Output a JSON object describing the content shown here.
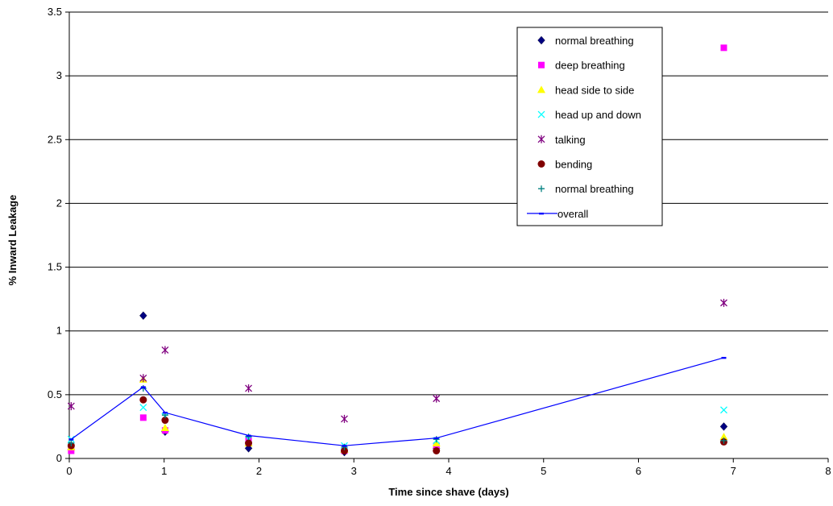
{
  "chart_data": {
    "type": "scatter",
    "title": "",
    "xlabel": "Time since shave (days)",
    "ylabel": "% Inward Leakage",
    "xlim": [
      0,
      8
    ],
    "ylim": [
      0,
      3.5
    ],
    "xticks": [
      "0",
      "1",
      "2",
      "3",
      "4",
      "5",
      "6",
      "7",
      "8"
    ],
    "yticks": [
      "0",
      "0.5",
      "1",
      "1.5",
      "2",
      "2.5",
      "3",
      "3.5"
    ],
    "grid": "horizontal",
    "legend_position": "top-right",
    "series": [
      {
        "name": "normal breathing",
        "marker": "diamond",
        "color": "#000080",
        "points": [
          [
            0.02,
            0.07
          ],
          [
            0.78,
            1.12
          ],
          [
            1.01,
            0.21
          ],
          [
            1.89,
            0.08
          ],
          [
            2.9,
            0.05
          ],
          [
            3.87,
            0.08
          ],
          [
            6.9,
            0.25
          ]
        ]
      },
      {
        "name": "deep breathing",
        "marker": "square",
        "color": "#FF00FF",
        "points": [
          [
            0.02,
            0.06
          ],
          [
            0.78,
            0.32
          ],
          [
            1.01,
            0.22
          ],
          [
            1.89,
            0.14
          ],
          [
            2.9,
            0.06
          ],
          [
            3.87,
            0.1
          ],
          [
            6.9,
            3.22
          ]
        ]
      },
      {
        "name": "head side to side",
        "marker": "triangle",
        "color": "#FFFF00",
        "points": [
          [
            0.02,
            0.09
          ],
          [
            0.78,
            0.62
          ],
          [
            1.01,
            0.24
          ],
          [
            1.89,
            0.12
          ],
          [
            2.9,
            0.07
          ],
          [
            3.87,
            0.12
          ],
          [
            6.9,
            0.17
          ]
        ]
      },
      {
        "name": "head up and down",
        "marker": "x",
        "color": "#00FFFF",
        "points": [
          [
            0.02,
            0.15
          ],
          [
            0.78,
            0.4
          ],
          [
            1.01,
            0.33
          ],
          [
            1.89,
            0.15
          ],
          [
            2.9,
            0.1
          ],
          [
            3.87,
            0.14
          ],
          [
            6.9,
            0.38
          ]
        ]
      },
      {
        "name": "talking",
        "marker": "star",
        "color": "#800080",
        "points": [
          [
            0.02,
            0.41
          ],
          [
            0.78,
            0.63
          ],
          [
            1.01,
            0.85
          ],
          [
            1.89,
            0.55
          ],
          [
            2.9,
            0.31
          ],
          [
            3.87,
            0.47
          ],
          [
            6.9,
            1.22
          ]
        ]
      },
      {
        "name": "bending",
        "marker": "circle",
        "color": "#800000",
        "points": [
          [
            0.02,
            0.1
          ],
          [
            0.78,
            0.46
          ],
          [
            1.01,
            0.3
          ],
          [
            1.89,
            0.12
          ],
          [
            2.9,
            0.06
          ],
          [
            3.87,
            0.06
          ],
          [
            6.9,
            0.13
          ]
        ]
      },
      {
        "name": "normal breathing",
        "marker": "plus",
        "color": "#008080",
        "points": [
          [
            0.02,
            0.12
          ],
          [
            0.78,
            0.55
          ],
          [
            1.01,
            0.34
          ],
          [
            1.89,
            0.17
          ],
          [
            2.9,
            0.09
          ],
          [
            3.87,
            0.15
          ],
          [
            6.9,
            0.14
          ]
        ]
      },
      {
        "name": "overall",
        "marker": "line",
        "color": "#0000FF",
        "points": [
          [
            0.02,
            0.15
          ],
          [
            0.78,
            0.56
          ],
          [
            1.01,
            0.36
          ],
          [
            1.89,
            0.18
          ],
          [
            2.9,
            0.1
          ],
          [
            3.87,
            0.16
          ],
          [
            6.9,
            0.79
          ]
        ]
      }
    ]
  }
}
